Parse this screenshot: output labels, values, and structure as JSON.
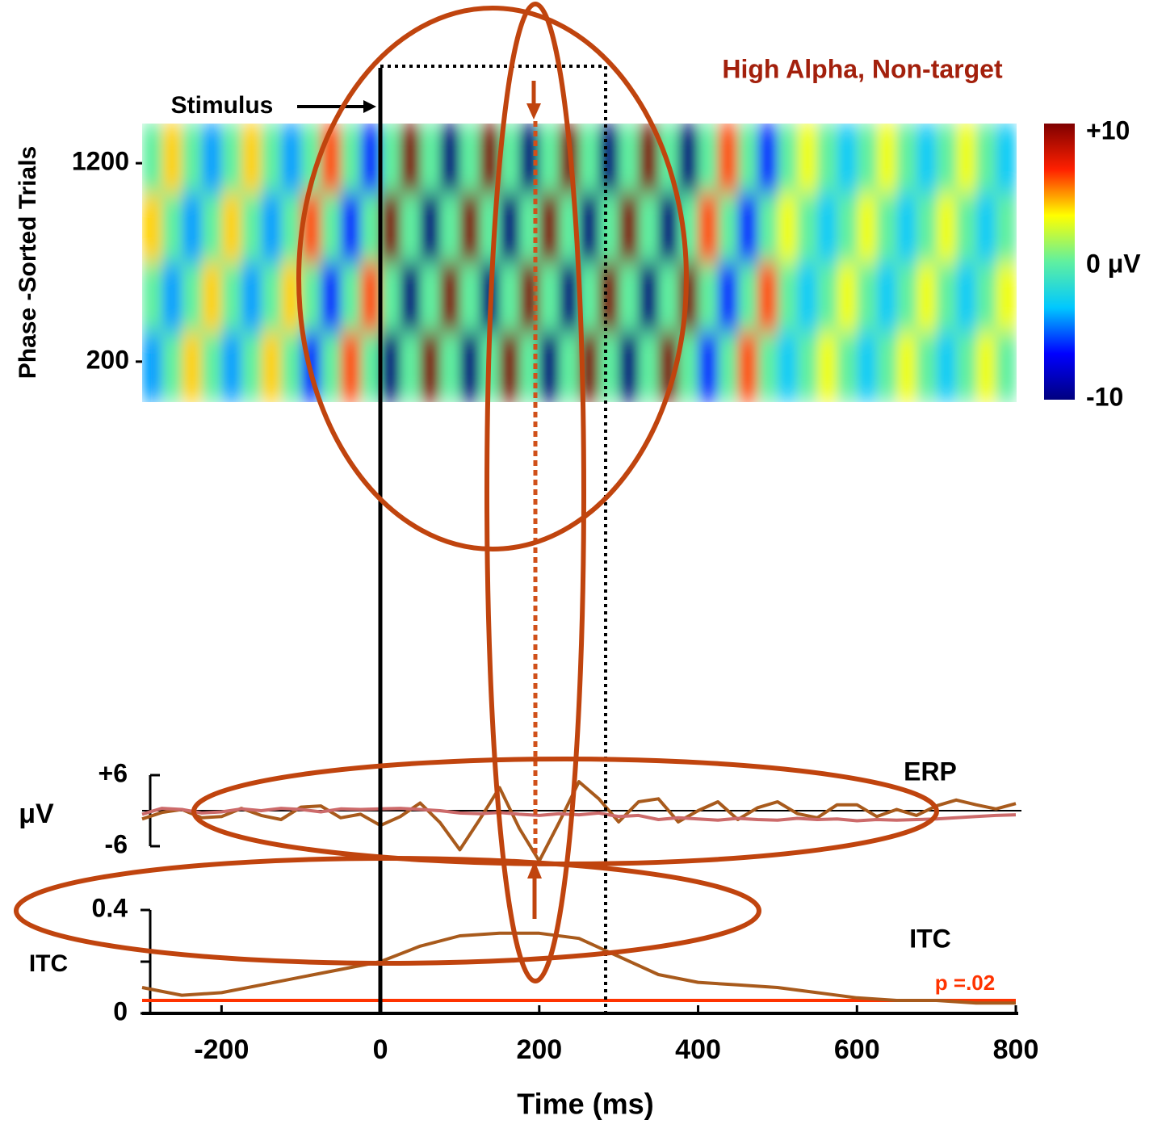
{
  "chart_data": [
    {
      "type": "heatmap",
      "title": "High Alpha, Non-target",
      "annotation": "Stimulus",
      "ylabel": "Phase -Sorted Trials",
      "xlim": [
        -300,
        800
      ],
      "ylim": [
        0,
        1400
      ],
      "yticks": [
        200,
        1200
      ],
      "values": [
        [
          0,
          4,
          0,
          -4,
          0,
          4,
          0,
          -4,
          0,
          6,
          0,
          -6,
          0,
          10,
          0,
          -10,
          0,
          10,
          0,
          -10,
          0,
          10,
          0,
          -10,
          0,
          10,
          0,
          -10,
          0,
          6,
          0,
          -6,
          0,
          3,
          0,
          -3,
          0,
          3,
          0,
          -3,
          0,
          3,
          0,
          -3
        ],
        [
          4,
          0,
          -4,
          0,
          4,
          0,
          -4,
          0,
          6,
          0,
          -6,
          0,
          10,
          0,
          -10,
          0,
          10,
          0,
          -10,
          0,
          10,
          0,
          -10,
          0,
          10,
          0,
          -10,
          0,
          6,
          0,
          -6,
          0,
          3,
          0,
          -3,
          0,
          3,
          0,
          -3,
          0,
          3,
          0,
          -3,
          0
        ],
        [
          0,
          -4,
          0,
          4,
          0,
          -4,
          0,
          4,
          0,
          -6,
          0,
          6,
          0,
          -10,
          0,
          10,
          0,
          -10,
          0,
          10,
          0,
          -10,
          0,
          10,
          0,
          -10,
          0,
          10,
          0,
          -6,
          0,
          6,
          0,
          -3,
          0,
          3,
          0,
          -3,
          0,
          3,
          0,
          -3,
          0,
          3
        ],
        [
          -4,
          0,
          4,
          0,
          -4,
          0,
          4,
          0,
          -6,
          0,
          6,
          0,
          -10,
          0,
          10,
          0,
          -10,
          0,
          10,
          0,
          -10,
          0,
          10,
          0,
          -10,
          0,
          10,
          0,
          -6,
          0,
          6,
          0,
          -3,
          0,
          3,
          0,
          -3,
          0,
          3,
          0,
          -3,
          0,
          3,
          0
        ]
      ],
      "colorbar": {
        "clim": [
          -10,
          10
        ],
        "ticks": [
          {
            "value": 10,
            "label": "+10"
          },
          {
            "value": 0,
            "label": "0 μV"
          },
          {
            "value": -10,
            "label": "-10"
          }
        ],
        "colormap": [
          "#00007f",
          "#0000ff",
          "#00c8ff",
          "#60f0a0",
          "#ffff00",
          "#ff2000",
          "#7f0000"
        ]
      }
    },
    {
      "type": "line",
      "ylabel": "μV",
      "xlim": [
        -300,
        800
      ],
      "ylim": [
        -6,
        6
      ],
      "yticks": [
        {
          "value": 6,
          "label": "+6"
        },
        {
          "value": -6,
          "label": "-6"
        }
      ],
      "x": [
        -300,
        -275,
        -250,
        -225,
        -200,
        -175,
        -150,
        -125,
        -100,
        -75,
        -50,
        -25,
        0,
        25,
        50,
        75,
        100,
        125,
        150,
        175,
        200,
        225,
        250,
        275,
        300,
        325,
        350,
        375,
        400,
        425,
        450,
        475,
        500,
        525,
        550,
        575,
        600,
        625,
        650,
        675,
        700,
        725,
        750,
        775,
        800
      ],
      "series": [
        {
          "name": "ERP",
          "color": "#a85a1c",
          "values": [
            -1.4,
            -0.3,
            0.2,
            -1.2,
            -1,
            0.4,
            -0.8,
            -1.5,
            0.6,
            0.8,
            -1.2,
            -0.6,
            -2.5,
            -1,
            1.3,
            -2,
            -6.6,
            -1.5,
            3.9,
            -3,
            -8.5,
            -2,
            4.9,
            2,
            -1.9,
            1.5,
            2,
            -1.9,
            0,
            1.5,
            -1.5,
            0.5,
            1.5,
            -0.5,
            -1.2,
            1,
            1,
            -1,
            0.2,
            -0.8,
            0.8,
            1.8,
            1,
            0.3,
            1.2
          ]
        },
        {
          "color": "#cc6a6a",
          "values": [
            -0.6,
            0.4,
            0.2,
            -0.4,
            -0.2,
            0.3,
            0,
            0.4,
            0.2,
            -0.2,
            0.3,
            0.2,
            0.3,
            0.4,
            0.2,
            0,
            -0.4,
            -0.5,
            -0.3,
            -0.6,
            -0.8,
            -0.5,
            -0.7,
            -0.4,
            -1,
            -0.8,
            -1.5,
            -1.2,
            -1.4,
            -1.6,
            -1.3,
            -1.5,
            -1.6,
            -1.3,
            -1.5,
            -1.4,
            -1.7,
            -1.5,
            -1.6,
            -1.5,
            -1.4,
            -1.2,
            -1,
            -0.8,
            -0.7
          ]
        }
      ]
    },
    {
      "type": "line",
      "ylabel": "ITC",
      "xlabel": "Time (ms)",
      "xlim": [
        -300,
        800
      ],
      "ylim": [
        0,
        0.4
      ],
      "xticks": [
        -200,
        0,
        200,
        400,
        600,
        800
      ],
      "yticks": [
        0,
        0.4
      ],
      "minor_yticks": [
        0.2
      ],
      "threshold": {
        "value": 0.05,
        "label": "p =.02",
        "color": "#ff3300"
      },
      "x": [
        -300,
        -250,
        -200,
        -150,
        -100,
        -50,
        0,
        50,
        100,
        150,
        200,
        250,
        300,
        350,
        400,
        450,
        500,
        550,
        600,
        650,
        700,
        750,
        800
      ],
      "series": [
        {
          "name": "ITC",
          "color": "#a85a1c",
          "values": [
            0.1,
            0.07,
            0.08,
            0.11,
            0.14,
            0.17,
            0.2,
            0.26,
            0.3,
            0.31,
            0.31,
            0.29,
            0.22,
            0.15,
            0.12,
            0.11,
            0.1,
            0.08,
            0.06,
            0.05,
            0.05,
            0.04,
            0.04
          ]
        }
      ]
    }
  ]
}
